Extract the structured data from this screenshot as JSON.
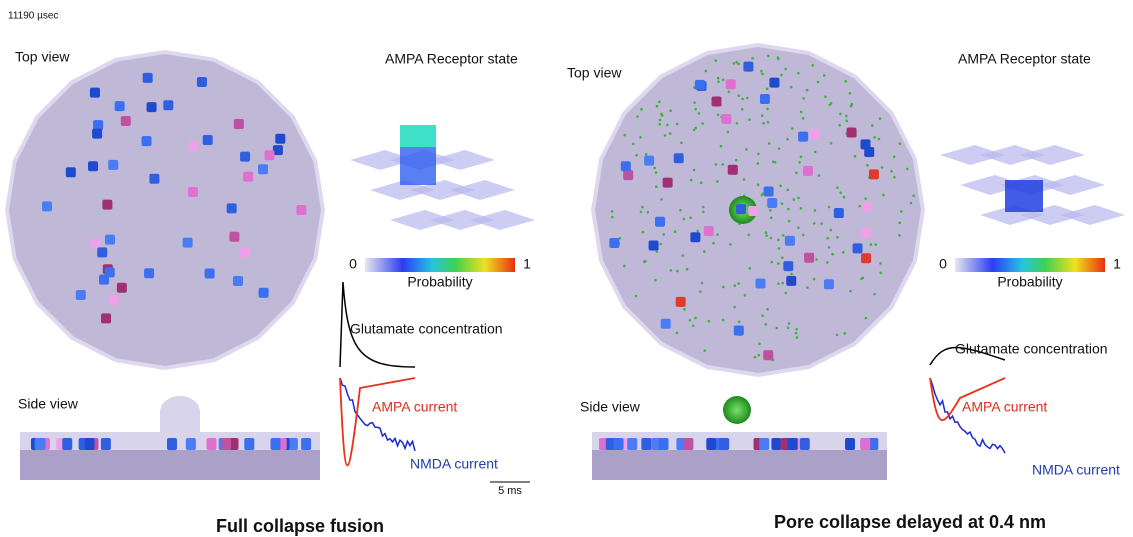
{
  "timestamp": "11190 µsec",
  "panels": [
    {
      "top_view_label": "Top view",
      "receptor_title": "AMPA Receptor state",
      "colorbar": {
        "min": "0",
        "max": "1",
        "label": "Probability"
      },
      "glutamate_label": "Glutamate concentration",
      "ampa_label": "AMPA current",
      "nmda_label": "NMDA current",
      "scale_bar": "5 ms",
      "side_view_label": "Side view",
      "caption": "Full collapse fusion"
    },
    {
      "top_view_label": "Top view",
      "receptor_title": "AMPA Receptor state",
      "colorbar": {
        "min": "0",
        "max": "1",
        "label": "Probability"
      },
      "glutamate_label": "Glutamate concentration",
      "ampa_label": "AMPA current",
      "nmda_label": "NMDA current",
      "side_view_label": "Side view",
      "caption": "Pore collapse delayed at 0.4 nm"
    }
  ]
}
